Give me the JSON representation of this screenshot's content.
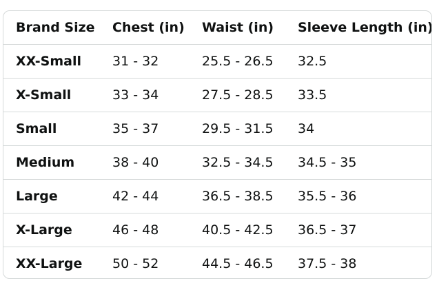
{
  "table": {
    "header": [
      "Brand Size",
      "Chest (in)",
      "Waist (in)",
      "Sleeve Length (in)"
    ],
    "rows": [
      [
        "XX-Small",
        "31 - 32",
        "25.5 - 26.5",
        "32.5"
      ],
      [
        "X-Small",
        "33 - 34",
        "27.5 - 28.5",
        "33.5"
      ],
      [
        "Small",
        "35 - 37",
        "29.5 - 31.5",
        "34"
      ],
      [
        "Medium",
        "38 - 40",
        "32.5 - 34.5",
        "34.5 - 35"
      ],
      [
        "Large",
        "42 - 44",
        "36.5 - 38.5",
        "35.5 - 36"
      ],
      [
        "X-Large",
        "46 - 48",
        "40.5 - 42.5",
        "36.5 - 37"
      ],
      [
        "XX-Large",
        "50 - 52",
        "44.5 - 46.5",
        "37.5 - 38"
      ]
    ]
  }
}
